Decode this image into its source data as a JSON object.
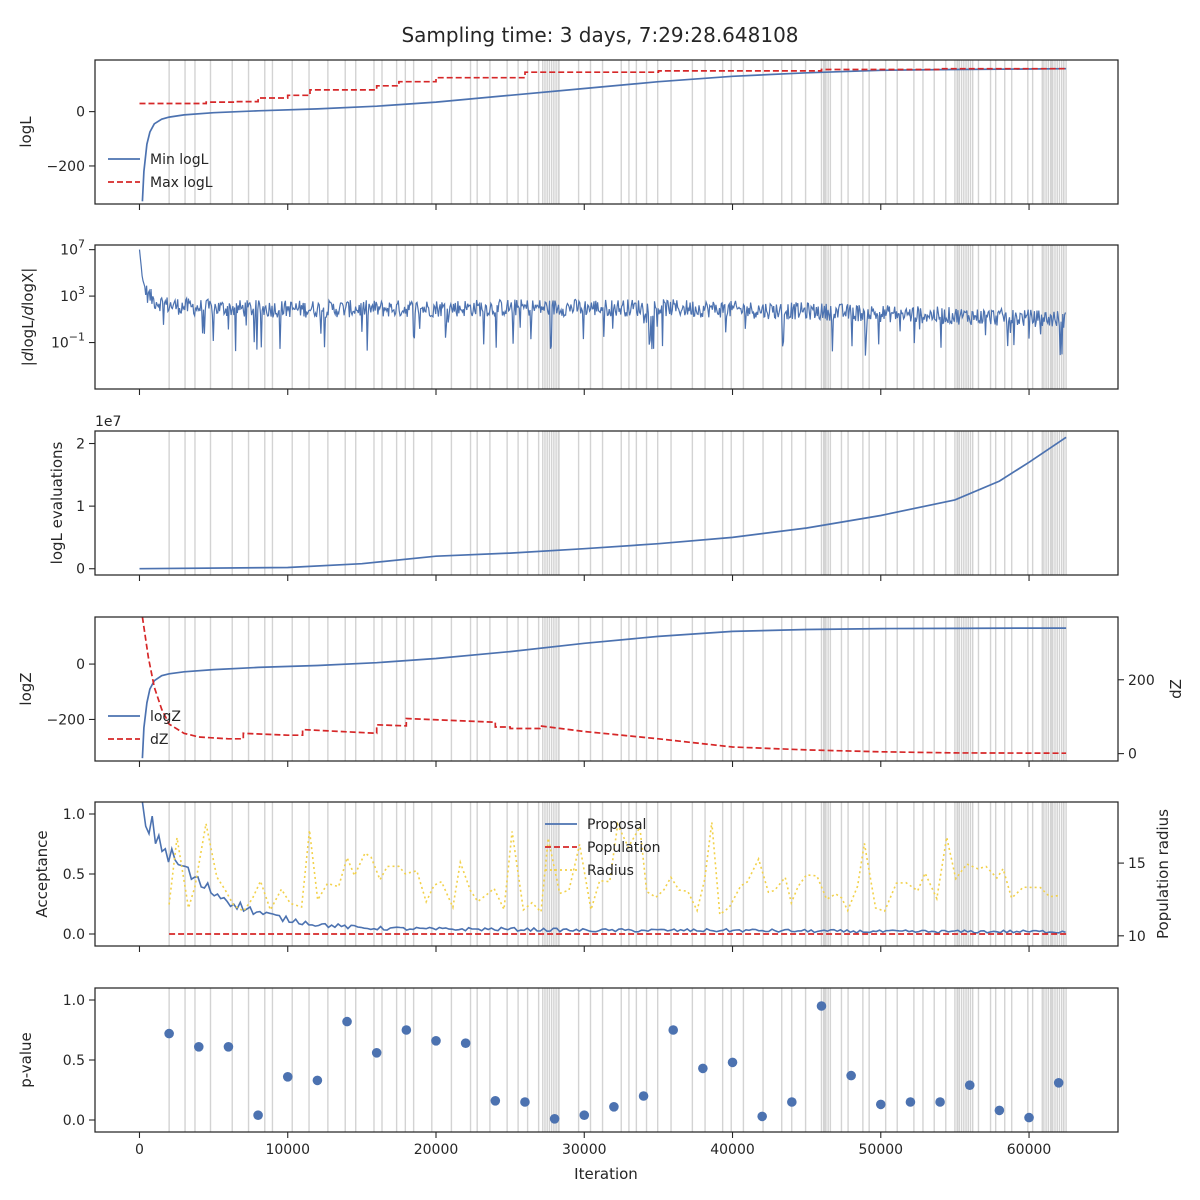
{
  "title": "Sampling time: 3 days, 7:29:28.648108",
  "colors": {
    "blue": "#4c72b0",
    "red": "#d62728",
    "yellow": "#f2d14a",
    "shade": "#d3d3d3",
    "axis": "#262626"
  },
  "x_axis": {
    "label": "Iteration",
    "range": [
      -3000,
      66000
    ],
    "ticks": [
      0,
      10000,
      20000,
      30000,
      40000,
      50000,
      60000
    ],
    "tick_labels": [
      "0",
      "10000",
      "20000",
      "30000",
      "40000",
      "50000",
      "60000"
    ]
  },
  "chart_data": [
    {
      "type": "line",
      "ylabel": "logL",
      "ylim": [
        -340,
        190
      ],
      "yticks": [
        0,
        -200
      ],
      "ytick_labels": [
        "0",
        "−200"
      ],
      "legend_position": "lower-left",
      "series": [
        {
          "name": "Min logL",
          "style": "solid",
          "color": "#4c72b0",
          "x": [
            200,
            300,
            500,
            700,
            1000,
            1500,
            2000,
            3000,
            5000,
            8000,
            12000,
            16000,
            20000,
            25000,
            30000,
            35000,
            40000,
            45000,
            50000,
            55000,
            60000,
            62500
          ],
          "y": [
            -330,
            -220,
            -120,
            -75,
            -45,
            -28,
            -20,
            -12,
            -4,
            3,
            10,
            20,
            35,
            60,
            85,
            110,
            130,
            143,
            152,
            155,
            157,
            158
          ]
        },
        {
          "name": "Max logL",
          "style": "dashed",
          "color": "#d62728",
          "x": [
            0,
            4500,
            4500,
            6500,
            6500,
            8000,
            8000,
            10000,
            10000,
            11500,
            11500,
            16000,
            16000,
            17500,
            17500,
            20000,
            20000,
            26000,
            26000,
            35000,
            35000,
            46000,
            46000,
            54000,
            54000,
            62500
          ],
          "y": [
            30,
            30,
            35,
            35,
            37,
            37,
            50,
            50,
            60,
            60,
            80,
            80,
            95,
            95,
            110,
            110,
            125,
            125,
            145,
            145,
            150,
            150,
            155,
            155,
            158,
            158
          ]
        }
      ]
    },
    {
      "type": "line",
      "ylabel": "|dlogL/dlogX|",
      "yscale": "log",
      "ylim_log10": [
        -5,
        7.4
      ],
      "yticks_log10": [
        7,
        3,
        -1
      ],
      "ytick_labels": [
        "10^7",
        "10^3",
        "10^-1"
      ],
      "series": [
        {
          "name": "",
          "style": "noisy",
          "color": "#4c72b0",
          "x": [
            0,
            200,
            500,
            1000,
            2000,
            4000,
            8000,
            15000,
            25000,
            35000,
            45000,
            55000,
            62500
          ],
          "center_log10": [
            7,
            4.5,
            3.2,
            2.6,
            2.2,
            2.0,
            1.9,
            1.9,
            2.0,
            2.0,
            1.7,
            1.3,
            1.0
          ]
        }
      ]
    },
    {
      "type": "line",
      "ylabel": "logL evaluations",
      "offset_text": "1e7",
      "ylim": [
        -0.1,
        2.2
      ],
      "yticks": [
        0,
        1,
        2
      ],
      "ytick_labels": [
        "0",
        "1",
        "2"
      ],
      "series": [
        {
          "name": "",
          "style": "solid",
          "color": "#4c72b0",
          "x": [
            0,
            10000,
            15000,
            20000,
            25000,
            30000,
            35000,
            40000,
            45000,
            50000,
            55000,
            58000,
            60000,
            62500
          ],
          "y": [
            0,
            0.02,
            0.08,
            0.2,
            0.25,
            0.32,
            0.4,
            0.5,
            0.65,
            0.85,
            1.1,
            1.4,
            1.7,
            2.1
          ]
        }
      ]
    },
    {
      "type": "line",
      "ylabel": "logZ",
      "ylim": [
        -350,
        170
      ],
      "yticks": [
        0,
        -200
      ],
      "ytick_labels": [
        "0",
        "−200"
      ],
      "ylabel_right": "dZ",
      "ylim_right": [
        -20,
        370
      ],
      "yticks_right": [
        200,
        0
      ],
      "ytick_labels_right": [
        "200",
        "0"
      ],
      "legend_position": "lower-left",
      "series": [
        {
          "name": "logZ",
          "style": "solid",
          "color": "#4c72b0",
          "axis": "left",
          "x": [
            200,
            300,
            500,
            700,
            1000,
            1500,
            2000,
            3000,
            5000,
            8000,
            12000,
            16000,
            20000,
            25000,
            30000,
            35000,
            40000,
            45000,
            50000,
            55000,
            60000,
            62500
          ],
          "y": [
            -340,
            -230,
            -140,
            -90,
            -60,
            -42,
            -35,
            -28,
            -20,
            -12,
            -5,
            5,
            20,
            45,
            75,
            100,
            118,
            125,
            128,
            129,
            130,
            130
          ]
        },
        {
          "name": "dZ",
          "style": "dashed",
          "color": "#d62728",
          "axis": "right",
          "x": [
            200,
            600,
            1000,
            1500,
            2000,
            3000,
            4000,
            6000,
            7000,
            7000,
            10000,
            11000,
            11000,
            16000,
            16000,
            18000,
            18000,
            24000,
            24000,
            25000,
            25000,
            27000,
            27000,
            30000,
            35000,
            40000,
            45000,
            50000,
            55000,
            62500
          ],
          "y": [
            370,
            260,
            180,
            120,
            80,
            55,
            45,
            40,
            40,
            55,
            50,
            50,
            65,
            55,
            78,
            75,
            95,
            85,
            72,
            72,
            68,
            68,
            75,
            60,
            40,
            18,
            10,
            5,
            2,
            1
          ]
        }
      ]
    },
    {
      "type": "line",
      "ylabel": "Acceptance",
      "ylim": [
        -0.1,
        1.1
      ],
      "yticks": [
        1.0,
        0.5,
        0.0
      ],
      "ytick_labels": [
        "1.0",
        "0.5",
        "0.0"
      ],
      "ylabel_right": "Population radius",
      "ylim_right": [
        9.3,
        19.2
      ],
      "yticks_right": [
        15,
        10
      ],
      "ytick_labels_right": [
        "15",
        "10"
      ],
      "legend_position": "top-center",
      "series": [
        {
          "name": "Proposal",
          "style": "solid",
          "color": "#4c72b0",
          "axis": "left",
          "x": [
            200,
            1000,
            2000,
            3000,
            4000,
            5000,
            6000,
            7000,
            8000,
            9000,
            10000,
            12000,
            15000,
            20000,
            25000,
            30000,
            40000,
            50000,
            62500
          ],
          "y": [
            0.98,
            0.85,
            0.65,
            0.55,
            0.42,
            0.35,
            0.28,
            0.22,
            0.18,
            0.15,
            0.12,
            0.08,
            0.05,
            0.04,
            0.04,
            0.03,
            0.03,
            0.02,
            0.02
          ]
        },
        {
          "name": "Population",
          "style": "dashed",
          "color": "#d62728",
          "axis": "left",
          "x": [
            2000,
            62500
          ],
          "y": [
            0.0,
            0.0
          ]
        },
        {
          "name": "Radius",
          "style": "dotted",
          "color": "#f2d14a",
          "axis": "right",
          "x": [
            2000,
            5000,
            10000,
            15000,
            20000,
            25000,
            30000,
            35000,
            40000,
            45000,
            50000,
            55000,
            58000,
            60000,
            62500
          ],
          "y": [
            12.5,
            13.0,
            12.8,
            14.5,
            13.2,
            12.0,
            12.8,
            13.5,
            12.5,
            13.0,
            12.5,
            13.5,
            14.0,
            13.0,
            12.5
          ]
        }
      ]
    },
    {
      "type": "scatter",
      "ylabel": "p-value",
      "ylim": [
        -0.1,
        1.1
      ],
      "yticks": [
        1.0,
        0.5,
        0.0
      ],
      "ytick_labels": [
        "1.0",
        "0.5",
        "0.0"
      ],
      "series": [
        {
          "name": "",
          "color": "#4c72b0",
          "x": [
            2000,
            4000,
            6000,
            8000,
            10000,
            12000,
            14000,
            16000,
            18000,
            20000,
            22000,
            24000,
            26000,
            28000,
            30000,
            32000,
            34000,
            36000,
            38000,
            40000,
            42000,
            44000,
            46000,
            48000,
            50000,
            52000,
            54000,
            56000,
            58000,
            60000,
            62000
          ],
          "y": [
            0.72,
            0.61,
            0.61,
            0.04,
            0.36,
            0.33,
            0.82,
            0.56,
            0.75,
            0.66,
            0.64,
            0.16,
            0.15,
            0.01,
            0.04,
            0.11,
            0.2,
            0.75,
            0.43,
            0.48,
            0.03,
            0.15,
            0.95,
            0.37,
            0.13,
            0.15,
            0.15,
            0.29,
            0.08,
            0.02,
            0.31
          ]
        }
      ]
    }
  ],
  "shaded_iterations": {
    "description_range": [
      2000,
      62500
    ],
    "dense_regions": [
      [
        27200,
        28300
      ],
      [
        46000,
        46700
      ],
      [
        55000,
        56300
      ],
      [
        61000,
        62500
      ]
    ]
  }
}
